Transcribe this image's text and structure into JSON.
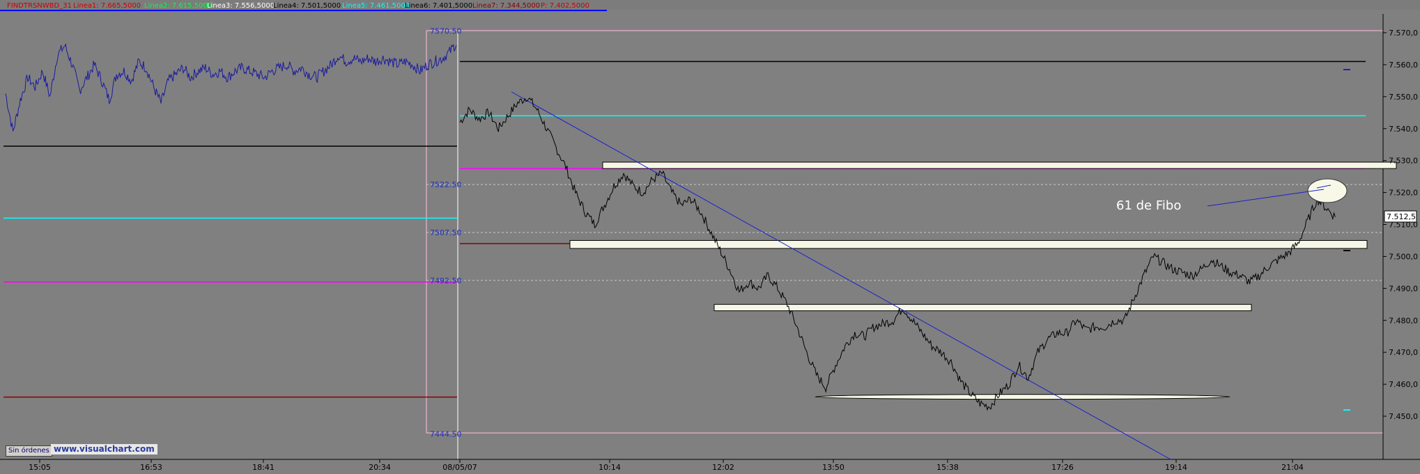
{
  "toolbar": {
    "series": [
      {
        "label": "FINDTRSNWBD_31",
        "color": "#cc0000"
      },
      {
        "label": "Linea1: 7.665,5000",
        "color": "#cc0000"
      },
      {
        "label": "Linea2: 7.615,5000",
        "color": "#00ff40"
      },
      {
        "label": "Linea3: 7.556,5000",
        "color": "#ffffff"
      },
      {
        "label": "Linea4: 7.501,5000",
        "color": "#000000"
      },
      {
        "label": "Linea5: 7.461,5000",
        "color": "#00ffff"
      },
      {
        "label": "Linea6: 7.401,5000",
        "color": "#000000"
      },
      {
        "label": "Linea7: 7.344,5000",
        "color": "#8b0000"
      },
      {
        "label": "P: 7.402,5000",
        "color": "#cc0000"
      }
    ]
  },
  "status": {
    "orders_button": "Sin órdenes",
    "watermark": "www.visualchart.com"
  },
  "chart_data": {
    "type": "line",
    "title": "",
    "annotation": "61 de Fibo",
    "last_price_label": "7.512,5",
    "y_axis": {
      "range": [
        7442,
        7575
      ],
      "ticks": [
        "7.450,0",
        "7.460,0",
        "7.470,0",
        "7.480,0",
        "7.490,0",
        "7.500,0",
        "7.510,0",
        "7.520,0",
        "7.530,0",
        "7.540,0",
        "7.550,0",
        "7.560,0",
        "7.570,0"
      ],
      "tick_values": [
        7450,
        7460,
        7470,
        7480,
        7490,
        7500,
        7510,
        7520,
        7530,
        7540,
        7550,
        7560,
        7570
      ]
    },
    "x_axis": {
      "ticks": [
        "15:05",
        "16:53",
        "18:41",
        "20:34",
        "08/05/07",
        "10:14",
        "12:02",
        "13:50",
        "15:38",
        "17:26",
        "19:14",
        "21:04"
      ]
    },
    "previous_session": {
      "price_path": [
        7551,
        7539,
        7549,
        7556,
        7553,
        7558,
        7550,
        7563,
        7566,
        7560,
        7552,
        7556,
        7560,
        7555,
        7549,
        7557,
        7558,
        7555,
        7561,
        7559,
        7553,
        7548,
        7555,
        7557,
        7559,
        7556,
        7558,
        7559,
        7557,
        7558,
        7556,
        7558,
        7559,
        7558,
        7557,
        7556,
        7558,
        7559,
        7560,
        7558,
        7559,
        7557,
        7556,
        7558,
        7560,
        7563,
        7561,
        7562,
        7561,
        7562,
        7561,
        7562,
        7561,
        7560,
        7561,
        7560,
        7558,
        7560,
        7561,
        7562,
        7564,
        7567
      ]
    },
    "session": {
      "price_path": [
        7542,
        7546,
        7543,
        7545,
        7540,
        7544,
        7548,
        7550,
        7546,
        7540,
        7534,
        7528,
        7520,
        7514,
        7510,
        7516,
        7522,
        7526,
        7522,
        7520,
        7524,
        7526,
        7520,
        7516,
        7518,
        7514,
        7508,
        7502,
        7496,
        7489,
        7492,
        7490,
        7494,
        7490,
        7485,
        7478,
        7470,
        7463,
        7459,
        7466,
        7472,
        7476,
        7475,
        7478,
        7479,
        7480,
        7484,
        7480,
        7476,
        7472,
        7470,
        7467,
        7461,
        7457,
        7454,
        7453,
        7457,
        7460,
        7466,
        7462,
        7470,
        7474,
        7476,
        7476,
        7480,
        7477,
        7478,
        7478,
        7480,
        7480,
        7487,
        7494,
        7500,
        7498,
        7496,
        7495,
        7494,
        7496,
        7499,
        7497,
        7495,
        7494,
        7492,
        7494,
        7497,
        7499,
        7501,
        7504,
        7511,
        7518,
        7515,
        7512
      ]
    },
    "levels_left": [
      {
        "label": "",
        "value": 7534.5,
        "color": "#000000"
      },
      {
        "label": "",
        "value": 7512,
        "color": "#00ffff"
      },
      {
        "label": "",
        "value": 7492,
        "color": "#ff00ff"
      },
      {
        "label": "",
        "value": 7456,
        "color": "#8b0000"
      }
    ],
    "levels_right": [
      {
        "value": 7561,
        "color": "#000000"
      },
      {
        "value": 7544,
        "color": "#00ffff"
      },
      {
        "value": 7527.5,
        "color": "#ff00ff"
      },
      {
        "value": 7504,
        "color": "#8b0000"
      }
    ],
    "dashed_levels": [
      7522.5,
      7507.5,
      7492.5
    ],
    "level_labels": [
      "7570.50",
      "7522.50",
      "7507.50",
      "7492.50",
      "7444.50"
    ],
    "level_label_values": [
      7570.5,
      7522.5,
      7507.5,
      7492.5,
      7444.5
    ],
    "zones": [
      {
        "value_top": 7529.5,
        "value_bottom": 7527.5
      },
      {
        "value_top": 7505,
        "value_bottom": 7502.5
      },
      {
        "value_top": 7485,
        "value_bottom": 7483
      },
      {
        "value_top": 7457,
        "value_bottom": 7456
      }
    ]
  }
}
